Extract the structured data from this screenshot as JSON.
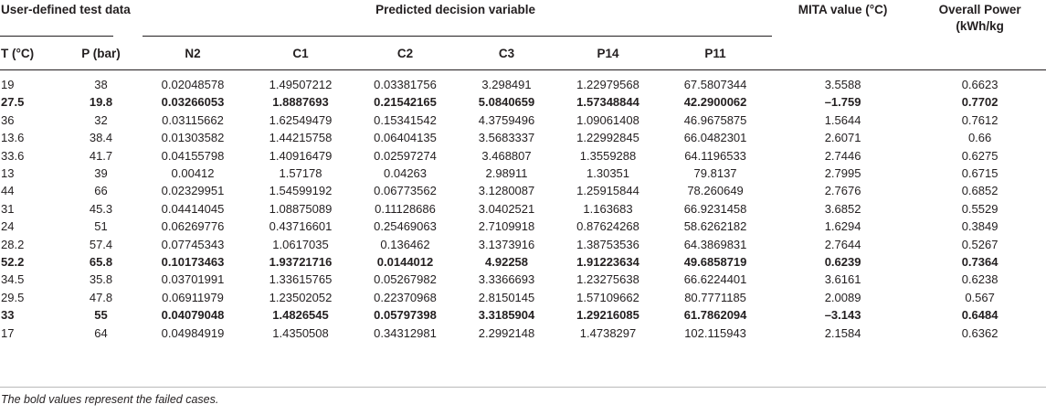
{
  "header": {
    "group1": "User-defined test data",
    "group2": "Predicted decision variable",
    "mita": "MITA value (°C)",
    "power": "Overall Power (kWh/kg",
    "cols": [
      "T (°C)",
      "P (bar)",
      "N2",
      "C1",
      "C2",
      "C3",
      "P14",
      "P11"
    ]
  },
  "rows": [
    {
      "bold": false,
      "cells": [
        "19",
        "38",
        "0.02048578",
        "1.49507212",
        "0.03381756",
        "3.298491",
        "1.22979568",
        "67.5807344",
        "3.5588",
        "0.6623"
      ]
    },
    {
      "bold": true,
      "cells": [
        "27.5",
        "19.8",
        "0.03266053",
        "1.8887693",
        "0.21542165",
        "5.0840659",
        "1.57348844",
        "42.2900062",
        "–1.759",
        "0.7702"
      ]
    },
    {
      "bold": false,
      "cells": [
        "36",
        "32",
        "0.03115662",
        "1.62549479",
        "0.15341542",
        "4.3759496",
        "1.09061408",
        "46.9675875",
        "1.5644",
        "0.7612"
      ]
    },
    {
      "bold": false,
      "cells": [
        "13.6",
        "38.4",
        "0.01303582",
        "1.44215758",
        "0.06404135",
        "3.5683337",
        "1.22992845",
        "66.0482301",
        "2.6071",
        "0.66"
      ]
    },
    {
      "bold": false,
      "cells": [
        "33.6",
        "41.7",
        "0.04155798",
        "1.40916479",
        "0.02597274",
        "3.468807",
        "1.3559288",
        "64.1196533",
        "2.7446",
        "0.6275"
      ]
    },
    {
      "bold": false,
      "cells": [
        "13",
        "39",
        "0.00412",
        "1.57178",
        "0.04263",
        "2.98911",
        "1.30351",
        "79.8137",
        "2.7995",
        "0.6715"
      ]
    },
    {
      "bold": false,
      "cells": [
        "44",
        "66",
        "0.02329951",
        "1.54599192",
        "0.06773562",
        "3.1280087",
        "1.25915844",
        "78.260649",
        "2.7676",
        "0.6852"
      ]
    },
    {
      "bold": false,
      "cells": [
        "31",
        "45.3",
        "0.04414045",
        "1.08875089",
        "0.11128686",
        "3.0402521",
        "1.163683",
        "66.9231458",
        "3.6852",
        "0.5529"
      ]
    },
    {
      "bold": false,
      "cells": [
        "24",
        "51",
        "0.06269776",
        "0.43716601",
        "0.25469063",
        "2.7109918",
        "0.87624268",
        "58.6262182",
        "1.6294",
        "0.3849"
      ]
    },
    {
      "bold": false,
      "cells": [
        "28.2",
        "57.4",
        "0.07745343",
        "1.0617035",
        "0.136462",
        "3.1373916",
        "1.38753536",
        "64.3869831",
        "2.7644",
        "0.5267"
      ]
    },
    {
      "bold": true,
      "cells": [
        "52.2",
        "65.8",
        "0.10173463",
        "1.93721716",
        "0.0144012",
        "4.92258",
        "1.91223634",
        "49.6858719",
        "0.6239",
        "0.7364"
      ]
    },
    {
      "bold": false,
      "cells": [
        "34.5",
        "35.8",
        "0.03701991",
        "1.33615765",
        "0.05267982",
        "3.3366693",
        "1.23275638",
        "66.6224401",
        "3.6161",
        "0.6238"
      ]
    },
    {
      "bold": false,
      "cells": [
        "29.5",
        "47.8",
        "0.06911979",
        "1.23502052",
        "0.22370968",
        "2.8150145",
        "1.57109662",
        "80.7771185",
        "2.0089",
        "0.567"
      ]
    },
    {
      "bold": true,
      "cells": [
        "33",
        "55",
        "0.04079048",
        "1.4826545",
        "0.05797398",
        "3.3185904",
        "1.29216085",
        "61.7862094",
        "–3.143",
        "0.6484"
      ]
    },
    {
      "bold": false,
      "cells": [
        "17",
        "64",
        "0.04984919",
        "1.4350508",
        "0.34312981",
        "2.2992148",
        "1.4738297",
        "102.115943",
        "2.1584",
        "0.6362"
      ]
    }
  ],
  "footnote": "The bold values represent the failed cases."
}
